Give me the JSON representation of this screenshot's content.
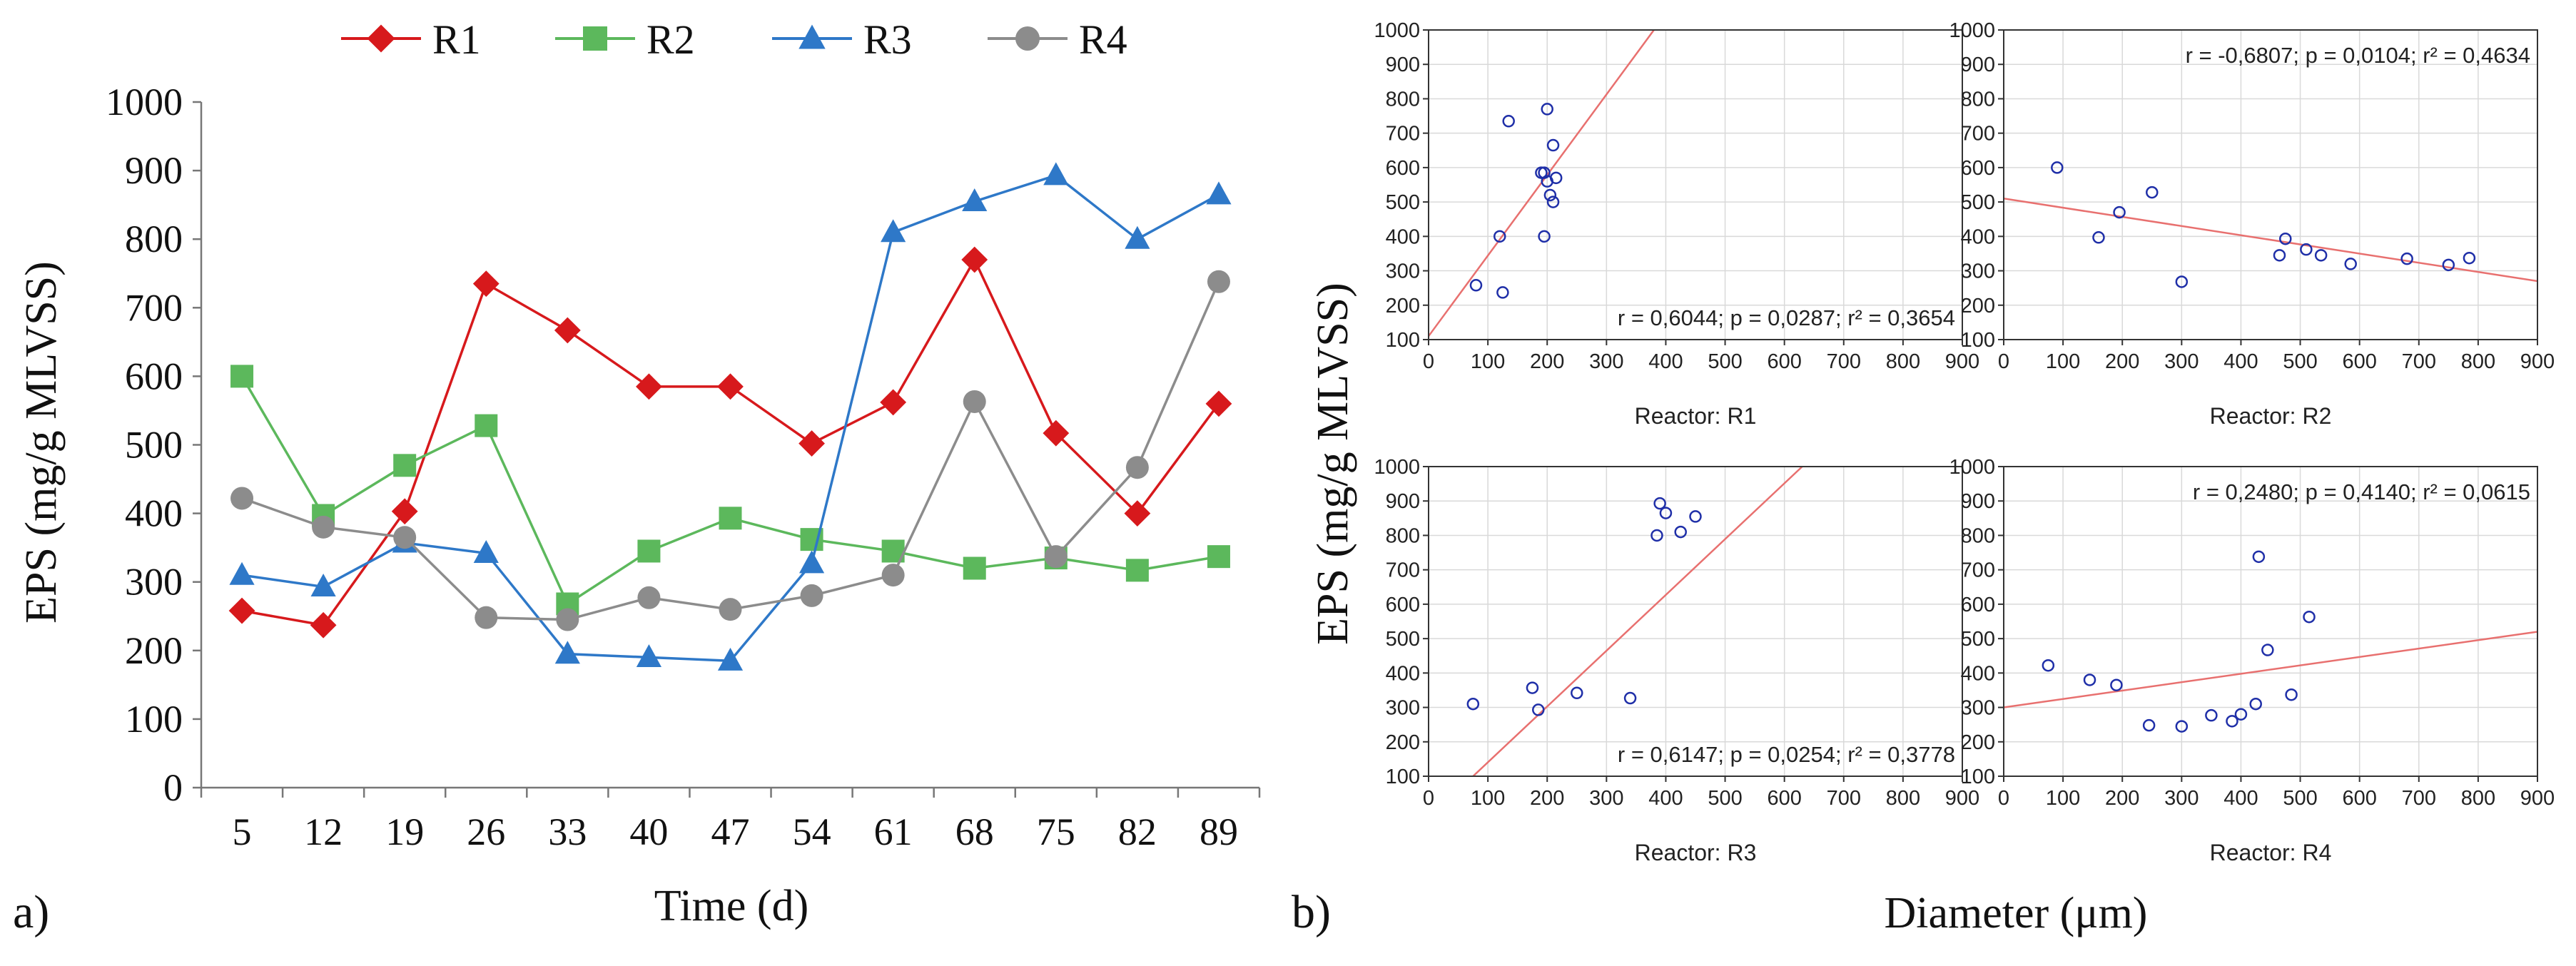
{
  "figure_a": {
    "panel_label": "a)",
    "chart_data": {
      "type": "line",
      "title": "",
      "xlabel": "Time (d)",
      "ylabel": "EPS (mg/g MLVSS)",
      "categories": [
        "5",
        "12",
        "19",
        "26",
        "33",
        "40",
        "47",
        "54",
        "61",
        "68",
        "75",
        "82",
        "89"
      ],
      "ylim": [
        0,
        1000
      ],
      "yticks": [
        0,
        100,
        200,
        300,
        400,
        500,
        600,
        700,
        800,
        900,
        1000
      ],
      "grid": false,
      "legend": "top",
      "series": [
        {
          "name": "R1",
          "color": "#d7191c",
          "marker": "diamond",
          "values": [
            258,
            237,
            403,
            735,
            667,
            585,
            585,
            502,
            562,
            770,
            517,
            400,
            560
          ]
        },
        {
          "name": "R2",
          "color": "#5cb85c",
          "marker": "square",
          "values": [
            600,
            397,
            470,
            528,
            268,
            345,
            393,
            362,
            345,
            320,
            335,
            317,
            337
          ]
        },
        {
          "name": "R3",
          "color": "#2e78c8",
          "marker": "triangle",
          "values": [
            310,
            293,
            357,
            342,
            195,
            190,
            185,
            327,
            810,
            855,
            893,
            800,
            865
          ]
        },
        {
          "name": "R4",
          "color": "#8c8c8c",
          "marker": "circle",
          "values": [
            422,
            380,
            365,
            248,
            245,
            277,
            260,
            280,
            310,
            563,
            337,
            467,
            738
          ]
        }
      ]
    }
  },
  "figure_b": {
    "panel_label": "b)",
    "ylabel": "EPS (mg/g MLVSS)",
    "xlabel": "Diameter (μm)",
    "chart_data": [
      {
        "type": "scatter",
        "title": "Reactor: R1",
        "stats": "r = 0,6044; p = 0,0287; r² = 0,3654",
        "stats_position": "bottom-right",
        "xlim": [
          0,
          900
        ],
        "ylim": [
          100,
          1000
        ],
        "xticks": [
          0,
          100,
          200,
          300,
          400,
          500,
          600,
          700,
          800,
          900
        ],
        "yticks": [
          100,
          200,
          300,
          400,
          500,
          600,
          700,
          800,
          900,
          1000
        ],
        "grid": true,
        "points": [
          [
            80,
            258
          ],
          [
            125,
            237
          ],
          [
            120,
            400
          ],
          [
            135,
            735
          ],
          [
            190,
            585
          ],
          [
            195,
            400
          ],
          [
            200,
            770
          ],
          [
            205,
            520
          ],
          [
            210,
            665
          ],
          [
            210,
            500
          ],
          [
            215,
            570
          ],
          [
            200,
            560
          ],
          [
            195,
            585
          ]
        ],
        "fit": [
          [
            0,
            110
          ],
          [
            380,
            1000
          ]
        ]
      },
      {
        "type": "scatter",
        "title": "Reactor: R2",
        "stats": "r = -0,6807; p = 0,0104; r² = 0,4634",
        "stats_position": "top-right",
        "xlim": [
          0,
          900
        ],
        "ylim": [
          100,
          1000
        ],
        "xticks": [
          0,
          100,
          200,
          300,
          400,
          500,
          600,
          700,
          800,
          900
        ],
        "yticks": [
          100,
          200,
          300,
          400,
          500,
          600,
          700,
          800,
          900,
          1000
        ],
        "grid": true,
        "points": [
          [
            90,
            600
          ],
          [
            160,
            397
          ],
          [
            195,
            470
          ],
          [
            250,
            528
          ],
          [
            300,
            268
          ],
          [
            465,
            345
          ],
          [
            475,
            393
          ],
          [
            510,
            362
          ],
          [
            535,
            345
          ],
          [
            585,
            320
          ],
          [
            680,
            335
          ],
          [
            750,
            317
          ],
          [
            785,
            337
          ]
        ],
        "fit": [
          [
            0,
            510
          ],
          [
            900,
            270
          ]
        ]
      },
      {
        "type": "scatter",
        "title": "Reactor: R3",
        "stats": "r = 0,6147; p = 0,0254; r² = 0,3778",
        "stats_position": "bottom-right",
        "xlim": [
          0,
          900
        ],
        "ylim": [
          100,
          1000
        ],
        "xticks": [
          0,
          100,
          200,
          300,
          400,
          500,
          600,
          700,
          800,
          900
        ],
        "yticks": [
          100,
          200,
          300,
          400,
          500,
          600,
          700,
          800,
          900,
          1000
        ],
        "grid": true,
        "points": [
          [
            75,
            310
          ],
          [
            175,
            357
          ],
          [
            185,
            293
          ],
          [
            250,
            342
          ],
          [
            340,
            327
          ],
          [
            385,
            800
          ],
          [
            390,
            893
          ],
          [
            400,
            865
          ],
          [
            425,
            810
          ],
          [
            450,
            855
          ]
        ],
        "fit": [
          [
            75,
            100
          ],
          [
            630,
            1000
          ]
        ]
      },
      {
        "type": "scatter",
        "title": "Reactor: R4",
        "stats": "r = 0,2480; p = 0,4140; r² = 0,0615",
        "stats_position": "top-right",
        "xlim": [
          0,
          900
        ],
        "ylim": [
          100,
          1000
        ],
        "xticks": [
          0,
          100,
          200,
          300,
          400,
          500,
          600,
          700,
          800,
          900
        ],
        "yticks": [
          100,
          200,
          300,
          400,
          500,
          600,
          700,
          800,
          900,
          1000
        ],
        "grid": true,
        "points": [
          [
            75,
            422
          ],
          [
            145,
            380
          ],
          [
            190,
            365
          ],
          [
            245,
            248
          ],
          [
            300,
            245
          ],
          [
            350,
            277
          ],
          [
            385,
            260
          ],
          [
            400,
            280
          ],
          [
            425,
            310
          ],
          [
            430,
            738
          ],
          [
            445,
            467
          ],
          [
            485,
            337
          ],
          [
            515,
            563
          ]
        ],
        "fit": [
          [
            0,
            300
          ],
          [
            900,
            520
          ]
        ]
      }
    ]
  }
}
